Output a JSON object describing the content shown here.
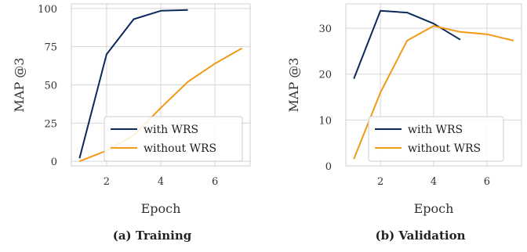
{
  "chart_data": [
    {
      "type": "line",
      "caption": "(a) Training",
      "xlabel": "Epoch",
      "ylabel": "MAP @3",
      "xlim": [
        0.7,
        7.3
      ],
      "ylim": [
        -3,
        103
      ],
      "xticks": [
        2,
        4,
        6
      ],
      "yticks": [
        0,
        25,
        50,
        75,
        100
      ],
      "grid": true,
      "legend_position": "lower-right",
      "series": [
        {
          "name": "with WRS",
          "color": "#0b2a5b",
          "x": [
            1,
            2,
            3,
            4,
            5
          ],
          "y": [
            2,
            70,
            93,
            98.5,
            99
          ]
        },
        {
          "name": "without WRS",
          "color": "#f29a16",
          "x": [
            1,
            2,
            3,
            4,
            5,
            6,
            7
          ],
          "y": [
            0,
            7,
            17,
            35,
            52,
            64,
            74
          ]
        }
      ]
    },
    {
      "type": "line",
      "caption": "(b) Validation",
      "xlabel": "Epoch",
      "ylabel": "MAP @3",
      "xlim": [
        0.7,
        7.3
      ],
      "ylim": [
        0,
        35.3
      ],
      "xticks": [
        2,
        4,
        6
      ],
      "yticks": [
        0,
        10,
        20,
        30
      ],
      "grid": true,
      "legend_position": "lower-right",
      "series": [
        {
          "name": "with WRS",
          "color": "#0b2a5b",
          "x": [
            1,
            2,
            3,
            4,
            5
          ],
          "y": [
            19,
            33.8,
            33.4,
            31,
            27.5
          ]
        },
        {
          "name": "without WRS",
          "color": "#f29a16",
          "x": [
            1,
            2,
            3,
            4,
            5,
            6,
            7
          ],
          "y": [
            1.5,
            16,
            27.3,
            30.5,
            29.2,
            28.7,
            27.3
          ]
        }
      ]
    }
  ]
}
